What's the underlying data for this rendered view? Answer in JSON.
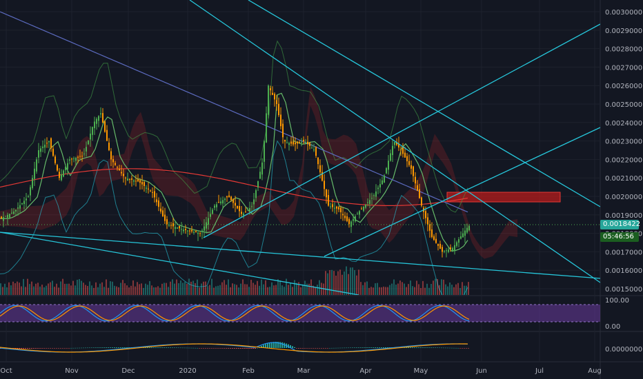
{
  "chart_data": {
    "type": "candlestick",
    "price_axis": {
      "ticks": [
        "0.0030000",
        "0.0029000",
        "0.0028000",
        "0.0027000",
        "0.0026000",
        "0.0025000",
        "0.0024000",
        "0.0023000",
        "0.0022000",
        "0.0021000",
        "0.0020000",
        "0.0019000",
        "0.0018000",
        "0.0017000",
        "0.0016000",
        "0.0015000"
      ],
      "ylim": [
        0.00146,
        0.00303
      ]
    },
    "time_axis": {
      "labels": [
        "Oct",
        "Nov",
        "Dec",
        "2020",
        "Feb",
        "Mar",
        "Apr",
        "May",
        "Jun",
        "Jul",
        "Aug"
      ]
    },
    "last_price": "0.0018422",
    "countdown": "05:46:56",
    "indicators": {
      "stoch_rsi_ticks": [
        "100.00",
        "0.00"
      ],
      "stoch_rsi_band": [
        20,
        80
      ],
      "macd_ticks": [
        "0.0000000"
      ]
    },
    "colors": {
      "background": "#131722",
      "up": "#26a69a",
      "down": "#ef5350",
      "candle_up": "#4caf50",
      "candle_down": "#ff9800",
      "trendline": "#26c6da",
      "price_badge": "#26a69a",
      "resistance_zone": "#b71c1c",
      "stoch_band": "#6a3a9c"
    }
  }
}
